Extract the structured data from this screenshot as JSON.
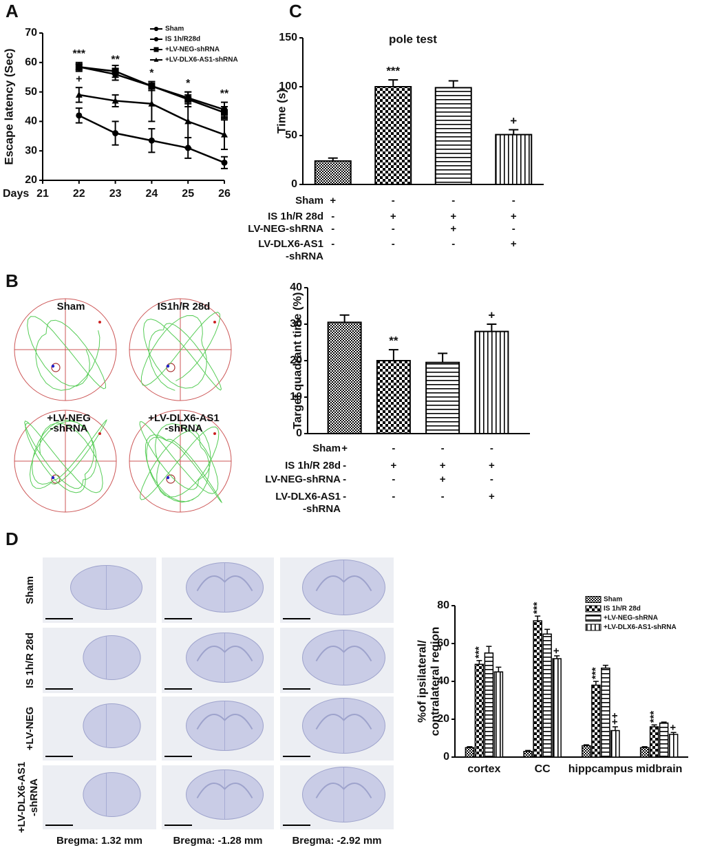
{
  "figure": {
    "panel_labels": [
      "A",
      "B",
      "C",
      "D"
    ],
    "maze_labels": [
      [
        "Sham"
      ],
      [
        "IS1h/R 28d"
      ],
      [
        "+LV-NEG",
        "-shRNA"
      ],
      [
        "+LV-DLX6-AS1",
        "-shRNA"
      ]
    ],
    "brain_rows": [
      [
        "Sham"
      ],
      [
        "IS 1h/R 28d"
      ],
      [
        "+LV-NEG"
      ],
      [
        "+LV-DLX6-AS1",
        "-shRNA"
      ]
    ],
    "brain_columns": [
      "Bregma: 1.32 mm",
      "Bregma: -1.28 mm",
      "Bregma: -2.92 mm"
    ]
  },
  "chart_data": [
    {
      "type": "line",
      "ylabel": "Escape latency (Sec)",
      "xlabel": "Days",
      "x": [
        22,
        23,
        24,
        25,
        26
      ],
      "xlim": [
        21,
        26
      ],
      "xticks": [
        21,
        22,
        23,
        24,
        25,
        26
      ],
      "ylim": [
        20,
        70
      ],
      "yticks": [
        20,
        30,
        40,
        50,
        60,
        70
      ],
      "legend": "top-right",
      "series": [
        {
          "name": "Sham",
          "color": "#000000",
          "marker": "circle",
          "values": [
            42,
            36,
            33.5,
            31,
            26
          ],
          "errors": [
            2.5,
            4,
            4,
            3.5,
            2
          ]
        },
        {
          "name": "IS 1h/R28d",
          "color": "#000000",
          "marker": "circle",
          "values": [
            58.5,
            56,
            52,
            48,
            44
          ],
          "errors": [
            1.5,
            2,
            1.5,
            2,
            2.5
          ],
          "annotations": [
            "***",
            "**",
            "*",
            "*",
            "**"
          ]
        },
        {
          "name": "+LV-NEG-shRNA",
          "color": "#000000",
          "marker": "square",
          "values": [
            58.5,
            57,
            52,
            47.5,
            43
          ],
          "errors": [
            1,
            2,
            1.5,
            2.5,
            2
          ]
        },
        {
          "name": "+LV-DLX6-AS1-shRNA",
          "color": "#000000",
          "marker": "triangle",
          "values": [
            49,
            47,
            46,
            40,
            35.5
          ],
          "errors": [
            2.5,
            2,
            6,
            9,
            5
          ],
          "annotations": [
            "+",
            null,
            null,
            null,
            null
          ]
        }
      ]
    },
    {
      "type": "bar",
      "title": "pole test",
      "ylabel": "Time (s)",
      "ylim": [
        0,
        150
      ],
      "yticks": [
        0,
        50,
        100,
        150
      ],
      "values": [
        24,
        100,
        99,
        51
      ],
      "errors": [
        3,
        7,
        7,
        5
      ],
      "annotations": [
        null,
        "***",
        null,
        "+"
      ],
      "patterns": [
        "fine-check",
        "checkerboard",
        "horizontal-lines",
        "vertical-lines"
      ],
      "color": "#000000",
      "treatments": {
        "rows": [
          [
            "Sham"
          ],
          [
            "IS 1h/R 28d"
          ],
          [
            "LV-NEG-shRNA"
          ],
          [
            "LV-DLX6-AS1",
            "-shRNA"
          ]
        ],
        "signs": [
          [
            "+",
            "-",
            "-",
            "-"
          ],
          [
            "-",
            "+",
            "+",
            "+"
          ],
          [
            "-",
            "-",
            "+",
            "-"
          ],
          [
            "-",
            "-",
            "-",
            "+"
          ]
        ]
      }
    },
    {
      "type": "bar",
      "ylabel": "Target quadrant time (%)",
      "ylim": [
        0,
        40
      ],
      "yticks": [
        0,
        10,
        20,
        30,
        40
      ],
      "values": [
        30.5,
        20,
        19.5,
        28
      ],
      "errors": [
        2,
        3,
        2.5,
        2
      ],
      "annotations": [
        null,
        "**",
        null,
        "+"
      ],
      "patterns": [
        "fine-check",
        "checkerboard",
        "horizontal-lines",
        "vertical-lines"
      ],
      "color": "#000000",
      "treatments": {
        "rows": [
          [
            "Sham"
          ],
          [
            "IS 1h/R 28d"
          ],
          [
            "LV-NEG-shRNA"
          ],
          [
            "LV-DLX6-AS1",
            "-shRNA"
          ]
        ],
        "signs": [
          [
            "+",
            "-",
            "-",
            "-"
          ],
          [
            "-",
            "+",
            "+",
            "+"
          ],
          [
            "-",
            "-",
            "+",
            "-"
          ],
          [
            "-",
            "-",
            "-",
            "+"
          ]
        ]
      }
    },
    {
      "type": "grouped-bar",
      "ylabel": [
        "%of ipsilateral/",
        "contralateral region"
      ],
      "categories": [
        "cortex",
        "CC",
        "hippcampus",
        "midbrain"
      ],
      "ylim": [
        0,
        80
      ],
      "yticks": [
        0,
        20,
        40,
        60,
        80
      ],
      "legend": "top-right",
      "series": [
        {
          "name": "Sham",
          "color": "#000000",
          "pattern": "fine-check",
          "values": [
            5,
            3,
            6,
            5
          ],
          "errors": [
            0.5,
            0.5,
            0.5,
            0.5
          ]
        },
        {
          "name": "IS 1h/R 28d",
          "color": "#000000",
          "pattern": "checkerboard",
          "values": [
            49,
            72,
            38,
            16
          ],
          "errors": [
            2,
            2.5,
            2,
            1
          ],
          "annotations": [
            "***",
            "***",
            "***",
            "***"
          ]
        },
        {
          "name": "+LV-NEG-shRNA",
          "color": "#000000",
          "pattern": "horizontal-lines",
          "values": [
            55,
            65,
            47,
            18
          ],
          "errors": [
            3.5,
            2.5,
            1.5,
            0.5
          ]
        },
        {
          "name": "+LV-DLX6-AS1-shRNA",
          "color": "#000000",
          "pattern": "vertical-lines",
          "values": [
            45,
            52,
            14,
            12
          ],
          "errors": [
            2.5,
            1.5,
            2,
            1
          ],
          "annotations": [
            null,
            "+",
            "++",
            "+"
          ]
        }
      ]
    }
  ]
}
